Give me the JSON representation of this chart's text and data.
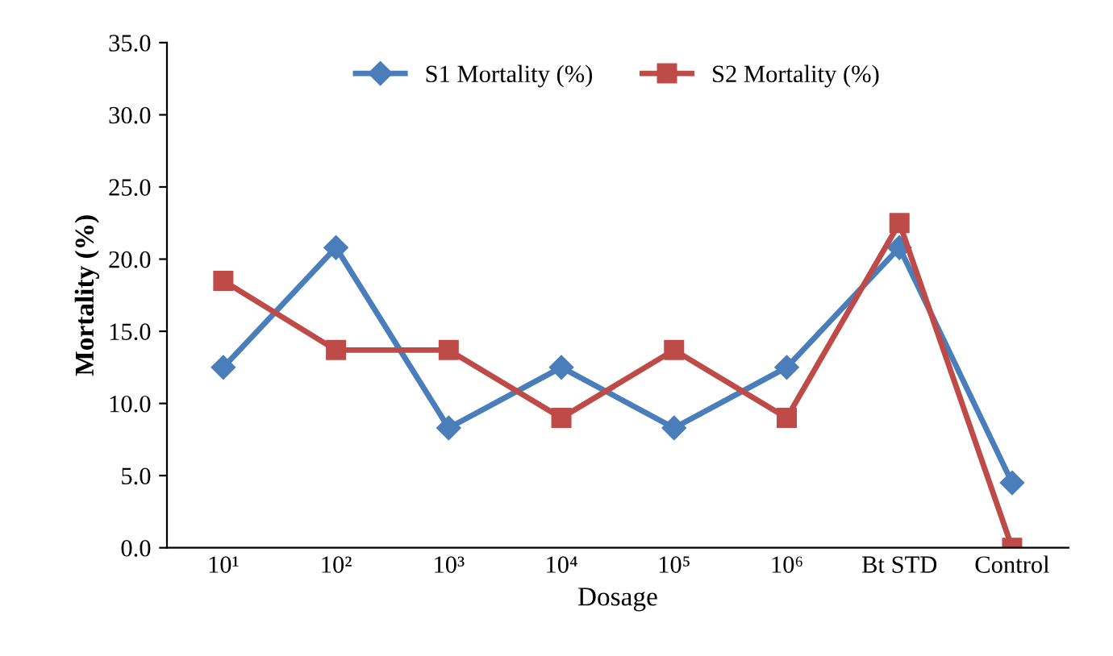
{
  "chart_data": {
    "type": "line",
    "xlabel": "Dosage",
    "ylabel": "Mortality (%)",
    "categories": [
      "10¹",
      "10²",
      "10³",
      "10⁴",
      "10⁵",
      "10⁶",
      "Bt STD",
      "Control"
    ],
    "series": [
      {
        "name": "S1 Mortality (%)",
        "color": "#4a7ebb",
        "marker": "diamond",
        "values": [
          12.5,
          20.8,
          8.3,
          12.5,
          8.3,
          12.5,
          20.8,
          4.5
        ]
      },
      {
        "name": "S2 Mortality (%)",
        "color": "#be4b48",
        "marker": "square",
        "values": [
          18.5,
          13.7,
          13.7,
          9.0,
          13.7,
          9.0,
          22.5,
          0.0
        ]
      }
    ],
    "ylim": [
      0,
      35
    ],
    "yticks": [
      {
        "value": 0,
        "label": "0.0"
      },
      {
        "value": 5,
        "label": "5.0"
      },
      {
        "value": 10,
        "label": "10.0"
      },
      {
        "value": 15,
        "label": "15.0"
      },
      {
        "value": 20,
        "label": "20.0"
      },
      {
        "value": 25,
        "label": "25.0"
      },
      {
        "value": 30,
        "label": "30.0"
      },
      {
        "value": 35,
        "label": "35.0"
      }
    ],
    "grid": false,
    "legend": "top",
    "line_style": "solid"
  }
}
